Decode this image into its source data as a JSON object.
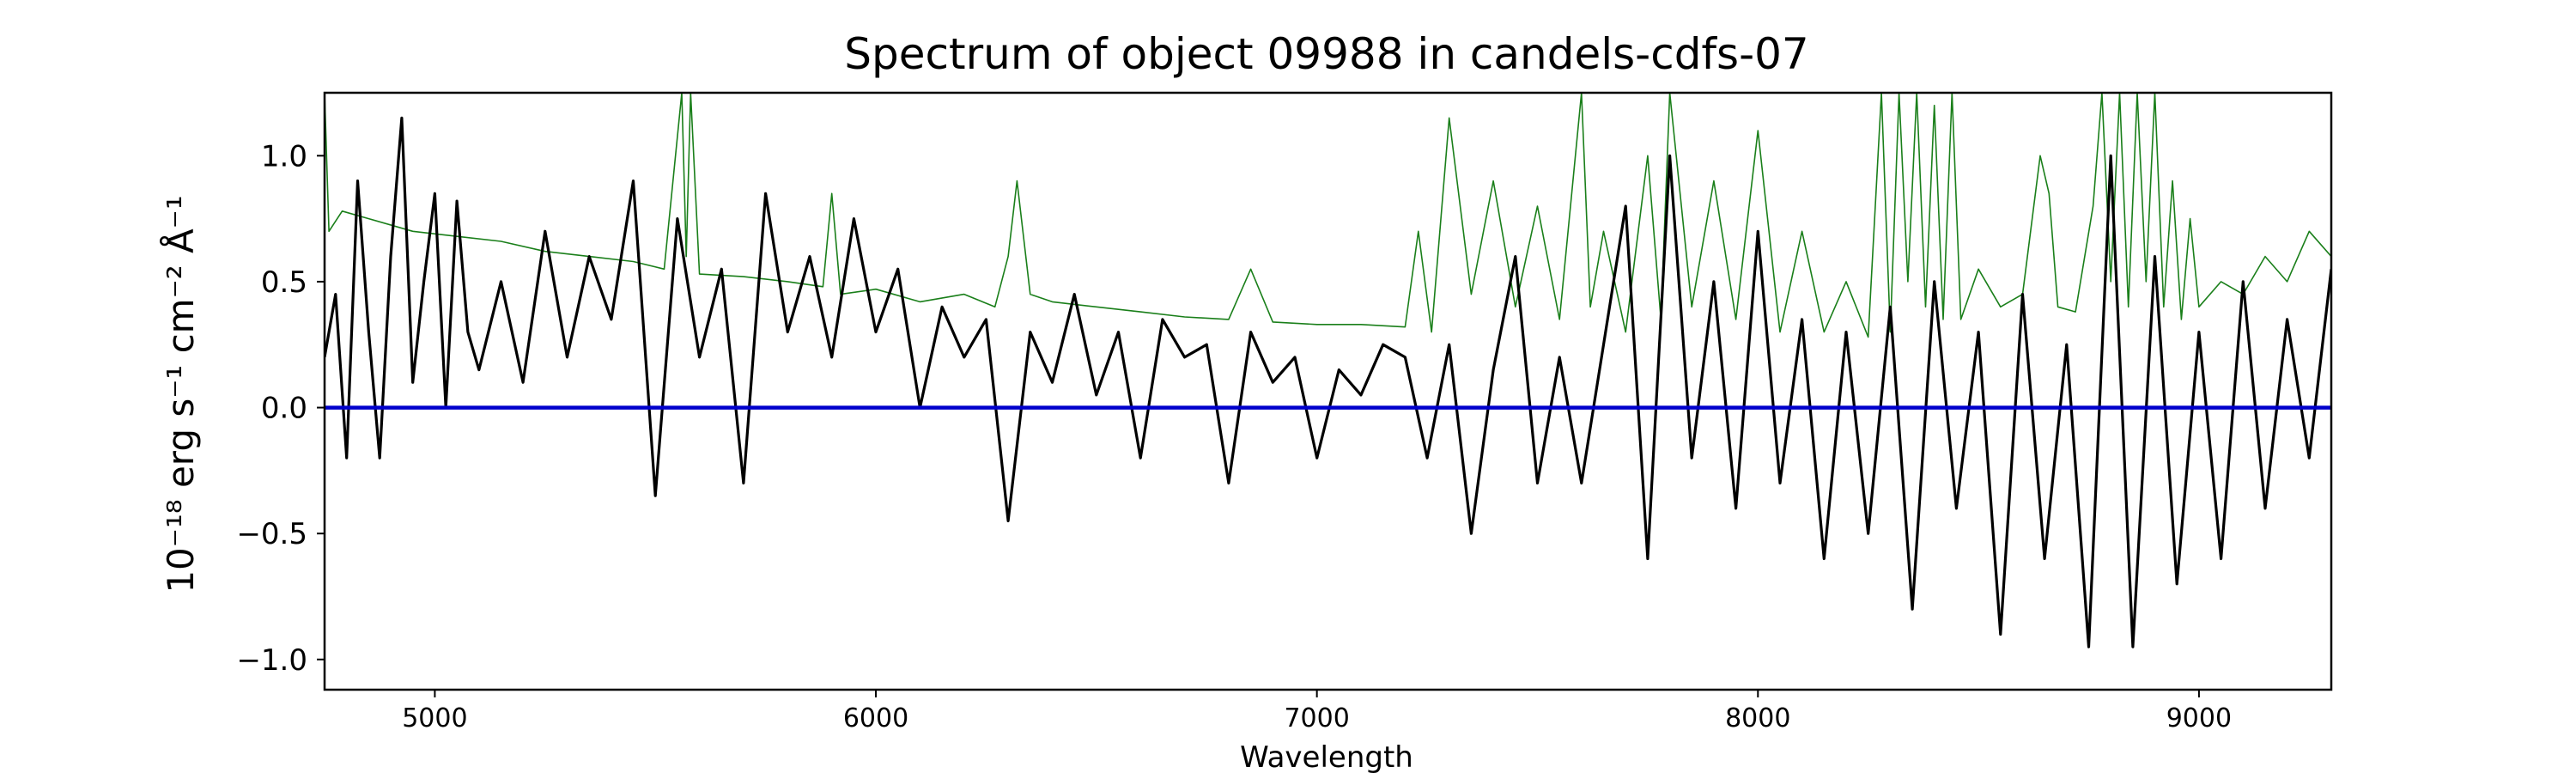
{
  "chart_data": {
    "type": "line",
    "title": "Spectrum of object 09988 in candels-cdfs-07",
    "xlabel": "Wavelength",
    "ylabel": "10⁻¹⁸ erg s⁻¹ cm⁻² Å⁻¹",
    "xlim": [
      4750,
      9300
    ],
    "ylim": [
      -1.12,
      1.25
    ],
    "x_ticks": [
      5000,
      6000,
      7000,
      8000,
      9000
    ],
    "y_ticks": [
      -1.0,
      -0.5,
      0.0,
      0.5,
      1.0
    ],
    "x_tick_labels": [
      "5000",
      "6000",
      "7000",
      "8000",
      "9000"
    ],
    "y_tick_labels": [
      "−1.0",
      "−0.5",
      "0.0",
      "0.5",
      "1.0"
    ],
    "grid": false,
    "series": [
      {
        "role": "flux",
        "color": "#000000",
        "x": [
          4750,
          4775,
          4800,
          4825,
          4850,
          4875,
          4900,
          4925,
          4950,
          4975,
          5000,
          5025,
          5050,
          5075,
          5100,
          5150,
          5200,
          5250,
          5300,
          5350,
          5400,
          5450,
          5500,
          5550,
          5600,
          5650,
          5700,
          5750,
          5800,
          5850,
          5900,
          5950,
          6000,
          6050,
          6100,
          6150,
          6200,
          6250,
          6300,
          6350,
          6400,
          6450,
          6500,
          6550,
          6600,
          6650,
          6700,
          6750,
          6800,
          6850,
          6900,
          6950,
          7000,
          7050,
          7100,
          7150,
          7200,
          7250,
          7300,
          7350,
          7400,
          7450,
          7500,
          7550,
          7600,
          7650,
          7700,
          7750,
          7800,
          7850,
          7900,
          7950,
          8000,
          8050,
          8100,
          8150,
          8200,
          8250,
          8300,
          8350,
          8400,
          8450,
          8500,
          8550,
          8600,
          8650,
          8700,
          8750,
          8800,
          8850,
          8900,
          8950,
          9000,
          9050,
          9100,
          9150,
          9200,
          9250,
          9300
        ],
        "y": [
          0.2,
          0.45,
          -0.2,
          0.9,
          0.3,
          -0.2,
          0.6,
          1.15,
          0.1,
          0.5,
          0.85,
          0.0,
          0.82,
          0.3,
          0.15,
          0.5,
          0.1,
          0.7,
          0.2,
          0.6,
          0.35,
          0.9,
          -0.35,
          0.75,
          0.2,
          0.55,
          -0.3,
          0.85,
          0.3,
          0.6,
          0.2,
          0.75,
          0.3,
          0.55,
          0.0,
          0.4,
          0.2,
          0.35,
          -0.45,
          0.3,
          0.1,
          0.45,
          0.05,
          0.3,
          -0.2,
          0.35,
          0.2,
          0.25,
          -0.3,
          0.3,
          0.1,
          0.2,
          -0.2,
          0.15,
          0.05,
          0.25,
          0.2,
          -0.2,
          0.25,
          -0.5,
          0.15,
          0.6,
          -0.3,
          0.2,
          -0.3,
          0.25,
          0.8,
          -0.6,
          1.0,
          -0.2,
          0.5,
          -0.4,
          0.7,
          -0.3,
          0.35,
          -0.6,
          0.3,
          -0.5,
          0.4,
          -0.8,
          0.5,
          -0.4,
          0.3,
          -0.9,
          0.45,
          -0.6,
          0.25,
          -0.95,
          1.0,
          -0.95,
          0.6,
          -0.7,
          0.3,
          -0.6,
          0.5,
          -0.4,
          0.35,
          -0.2,
          0.55
        ]
      },
      {
        "role": "error",
        "color": "#1a7f1a",
        "x": [
          4750,
          4760,
          4790,
          4850,
          4950,
          5050,
          5150,
          5250,
          5350,
          5450,
          5520,
          5560,
          5570,
          5580,
          5600,
          5700,
          5800,
          5880,
          5900,
          5920,
          6000,
          6100,
          6200,
          6270,
          6300,
          6320,
          6350,
          6400,
          6500,
          6600,
          6700,
          6800,
          6850,
          6900,
          7000,
          7100,
          7200,
          7230,
          7260,
          7300,
          7350,
          7400,
          7450,
          7500,
          7550,
          7600,
          7620,
          7650,
          7700,
          7750,
          7780,
          7800,
          7850,
          7900,
          7950,
          8000,
          8050,
          8100,
          8150,
          8200,
          8250,
          8280,
          8300,
          8320,
          8340,
          8360,
          8380,
          8400,
          8420,
          8440,
          8460,
          8500,
          8550,
          8600,
          8640,
          8660,
          8680,
          8720,
          8760,
          8780,
          8800,
          8820,
          8840,
          8860,
          8880,
          8900,
          8920,
          8940,
          8960,
          8980,
          9000,
          9050,
          9100,
          9150,
          9200,
          9250,
          9300
        ],
        "y": [
          1.25,
          0.7,
          0.78,
          0.75,
          0.7,
          0.68,
          0.66,
          0.62,
          0.6,
          0.58,
          0.55,
          1.25,
          0.6,
          1.25,
          0.53,
          0.52,
          0.5,
          0.48,
          0.85,
          0.45,
          0.47,
          0.42,
          0.45,
          0.4,
          0.6,
          0.9,
          0.45,
          0.42,
          0.4,
          0.38,
          0.36,
          0.35,
          0.55,
          0.34,
          0.33,
          0.33,
          0.32,
          0.7,
          0.3,
          1.15,
          0.45,
          0.9,
          0.4,
          0.8,
          0.35,
          1.25,
          0.4,
          0.7,
          0.3,
          1.0,
          0.35,
          1.25,
          0.4,
          0.9,
          0.35,
          1.1,
          0.3,
          0.7,
          0.3,
          0.5,
          0.28,
          1.25,
          0.3,
          1.25,
          0.5,
          1.25,
          0.4,
          1.2,
          0.35,
          1.25,
          0.35,
          0.55,
          0.4,
          0.45,
          1.0,
          0.85,
          0.4,
          0.38,
          0.8,
          1.25,
          0.5,
          1.25,
          0.4,
          1.25,
          0.5,
          1.25,
          0.4,
          0.9,
          0.35,
          0.75,
          0.4,
          0.5,
          0.45,
          0.6,
          0.5,
          0.7,
          0.6
        ]
      },
      {
        "role": "continuum",
        "color": "#0000cc",
        "x": [
          4750,
          9300
        ],
        "y": [
          0.0,
          0.0
        ]
      }
    ]
  }
}
